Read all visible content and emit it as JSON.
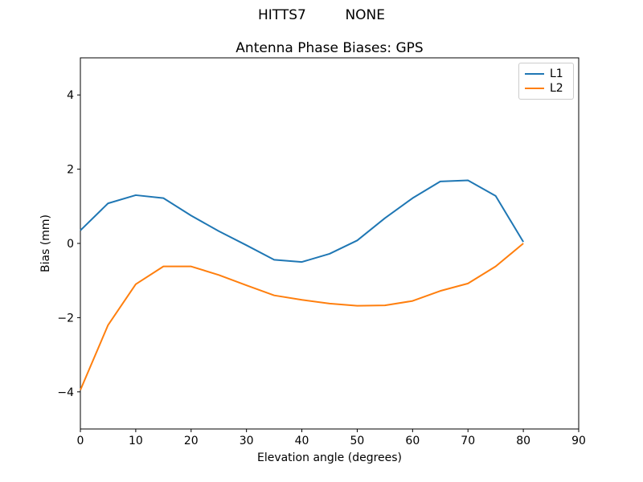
{
  "header": {
    "suptitle": "HITTS7         NONE"
  },
  "chart_data": {
    "type": "line",
    "title": "Antenna Phase Biases: GPS",
    "xlabel": "Elevation angle (degrees)",
    "ylabel": "Bias (mm)",
    "xlim": [
      0,
      90
    ],
    "ylim": [
      -5,
      5
    ],
    "xticks": [
      0,
      10,
      20,
      30,
      40,
      50,
      60,
      70,
      80,
      90
    ],
    "yticks": [
      -4,
      -2,
      0,
      2,
      4
    ],
    "grid": false,
    "legend_position": "upper right",
    "x": [
      0,
      5,
      10,
      15,
      20,
      25,
      30,
      35,
      40,
      45,
      50,
      55,
      60,
      65,
      70,
      75,
      80
    ],
    "series": [
      {
        "name": "L1",
        "color": "#1f77b4",
        "values": [
          0.35,
          1.08,
          1.3,
          1.22,
          0.75,
          0.33,
          -0.05,
          -0.44,
          -0.5,
          -0.28,
          0.08,
          0.68,
          1.22,
          1.67,
          1.7,
          1.28,
          0.04
        ]
      },
      {
        "name": "L2",
        "color": "#ff7f0e",
        "values": [
          -3.95,
          -2.2,
          -1.1,
          -0.62,
          -0.62,
          -0.85,
          -1.13,
          -1.4,
          -1.52,
          -1.62,
          -1.68,
          -1.67,
          -1.55,
          -1.28,
          -1.08,
          -0.62,
          0.0
        ]
      }
    ],
    "colors": {
      "background": "#ffffff",
      "spine": "#000000"
    }
  }
}
